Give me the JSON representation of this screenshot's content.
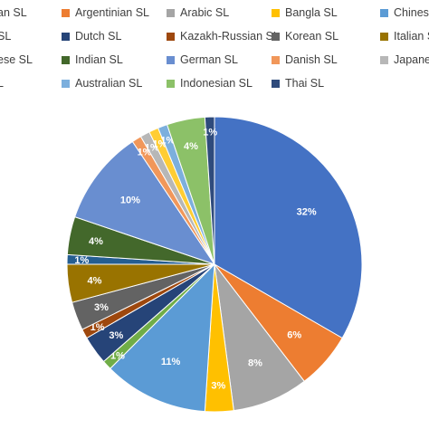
{
  "chart_data": {
    "type": "pie",
    "title": "",
    "legend_position": "top",
    "slices": [
      {
        "name": "American SL",
        "legend_text": "an SL",
        "value": 32,
        "label": "32%",
        "color": "#4472C4"
      },
      {
        "name": "Argentinian SL",
        "legend_text": "Argentinian SL",
        "value": 6,
        "label": "6%",
        "color": "#ED7D31"
      },
      {
        "name": "Arabic SL",
        "legend_text": "Arabic SL",
        "value": 8,
        "label": "8%",
        "color": "#A5A5A5"
      },
      {
        "name": "Bangla SL",
        "legend_text": "Bangla SL",
        "value": 3,
        "label": "3%",
        "color": "#FFC000"
      },
      {
        "name": "Chinese SL",
        "legend_text": "Chinese",
        "value": 11,
        "label": "11%",
        "color": "#5B9BD5"
      },
      {
        "name": "British SL",
        "legend_text": "SL",
        "value": 1,
        "label": "1%",
        "color": "#70AD47"
      },
      {
        "name": "Dutch SL",
        "legend_text": "Dutch SL",
        "value": 3,
        "label": "3%",
        "color": "#264478"
      },
      {
        "name": "Kazakh-Russian SL",
        "legend_text": "Kazakh-Russian SL",
        "value": 1,
        "label": "1%",
        "color": "#9E480E"
      },
      {
        "name": "Korean SL",
        "legend_text": "Korean SL",
        "value": 3,
        "label": "3%",
        "color": "#636363"
      },
      {
        "name": "Italian SL",
        "legend_text": "Italian S",
        "value": 4,
        "label": "4%",
        "color": "#997300"
      },
      {
        "name": "Japanese SL",
        "legend_text": "ese SL",
        "value": 1,
        "label": "1%",
        "color": "#255E91"
      },
      {
        "name": "Indian SL",
        "legend_text": "Indian SL",
        "value": 4,
        "label": "4%",
        "color": "#43682B"
      },
      {
        "name": "German SL",
        "legend_text": "German SL",
        "value": 10,
        "label": "10%",
        "color": "#698ED0"
      },
      {
        "name": "Danish SL",
        "legend_text": "Danish SL",
        "value": 1,
        "label": "1%",
        "color": "#F1975A"
      },
      {
        "name": "Japanese SL",
        "legend_text": "Japanese",
        "value": 1,
        "label": "1%",
        "color": "#B7B7B7"
      },
      {
        "name": "Turkish SL",
        "legend_text": "L",
        "value": 1,
        "label": "1%",
        "color": "#FFCD33"
      },
      {
        "name": "Australian SL",
        "legend_text": "Australian SL",
        "value": 1,
        "label": "1%",
        "color": "#7CAFDD"
      },
      {
        "name": "Indonesian SL",
        "legend_text": "Indonesian SL",
        "value": 4,
        "label": "4%",
        "color": "#8CC168"
      },
      {
        "name": "Thai SL",
        "legend_text": "Thai SL",
        "value": 1,
        "label": "1%",
        "color": "#2F4B7C"
      }
    ],
    "legend_rows": [
      [
        "an SL",
        "Argentinian SL",
        "Arabic SL",
        "Bangla SL",
        "Chinese"
      ],
      [
        "SL",
        "Dutch SL",
        "Kazakh-Russian SL",
        "Korean SL",
        "Italian S"
      ],
      [
        "ese SL",
        "Indian SL",
        "German SL",
        "Danish SL",
        "Japanese"
      ],
      [
        "L",
        "Australian SL",
        "Indonesian SL",
        "Thai SL"
      ]
    ]
  }
}
